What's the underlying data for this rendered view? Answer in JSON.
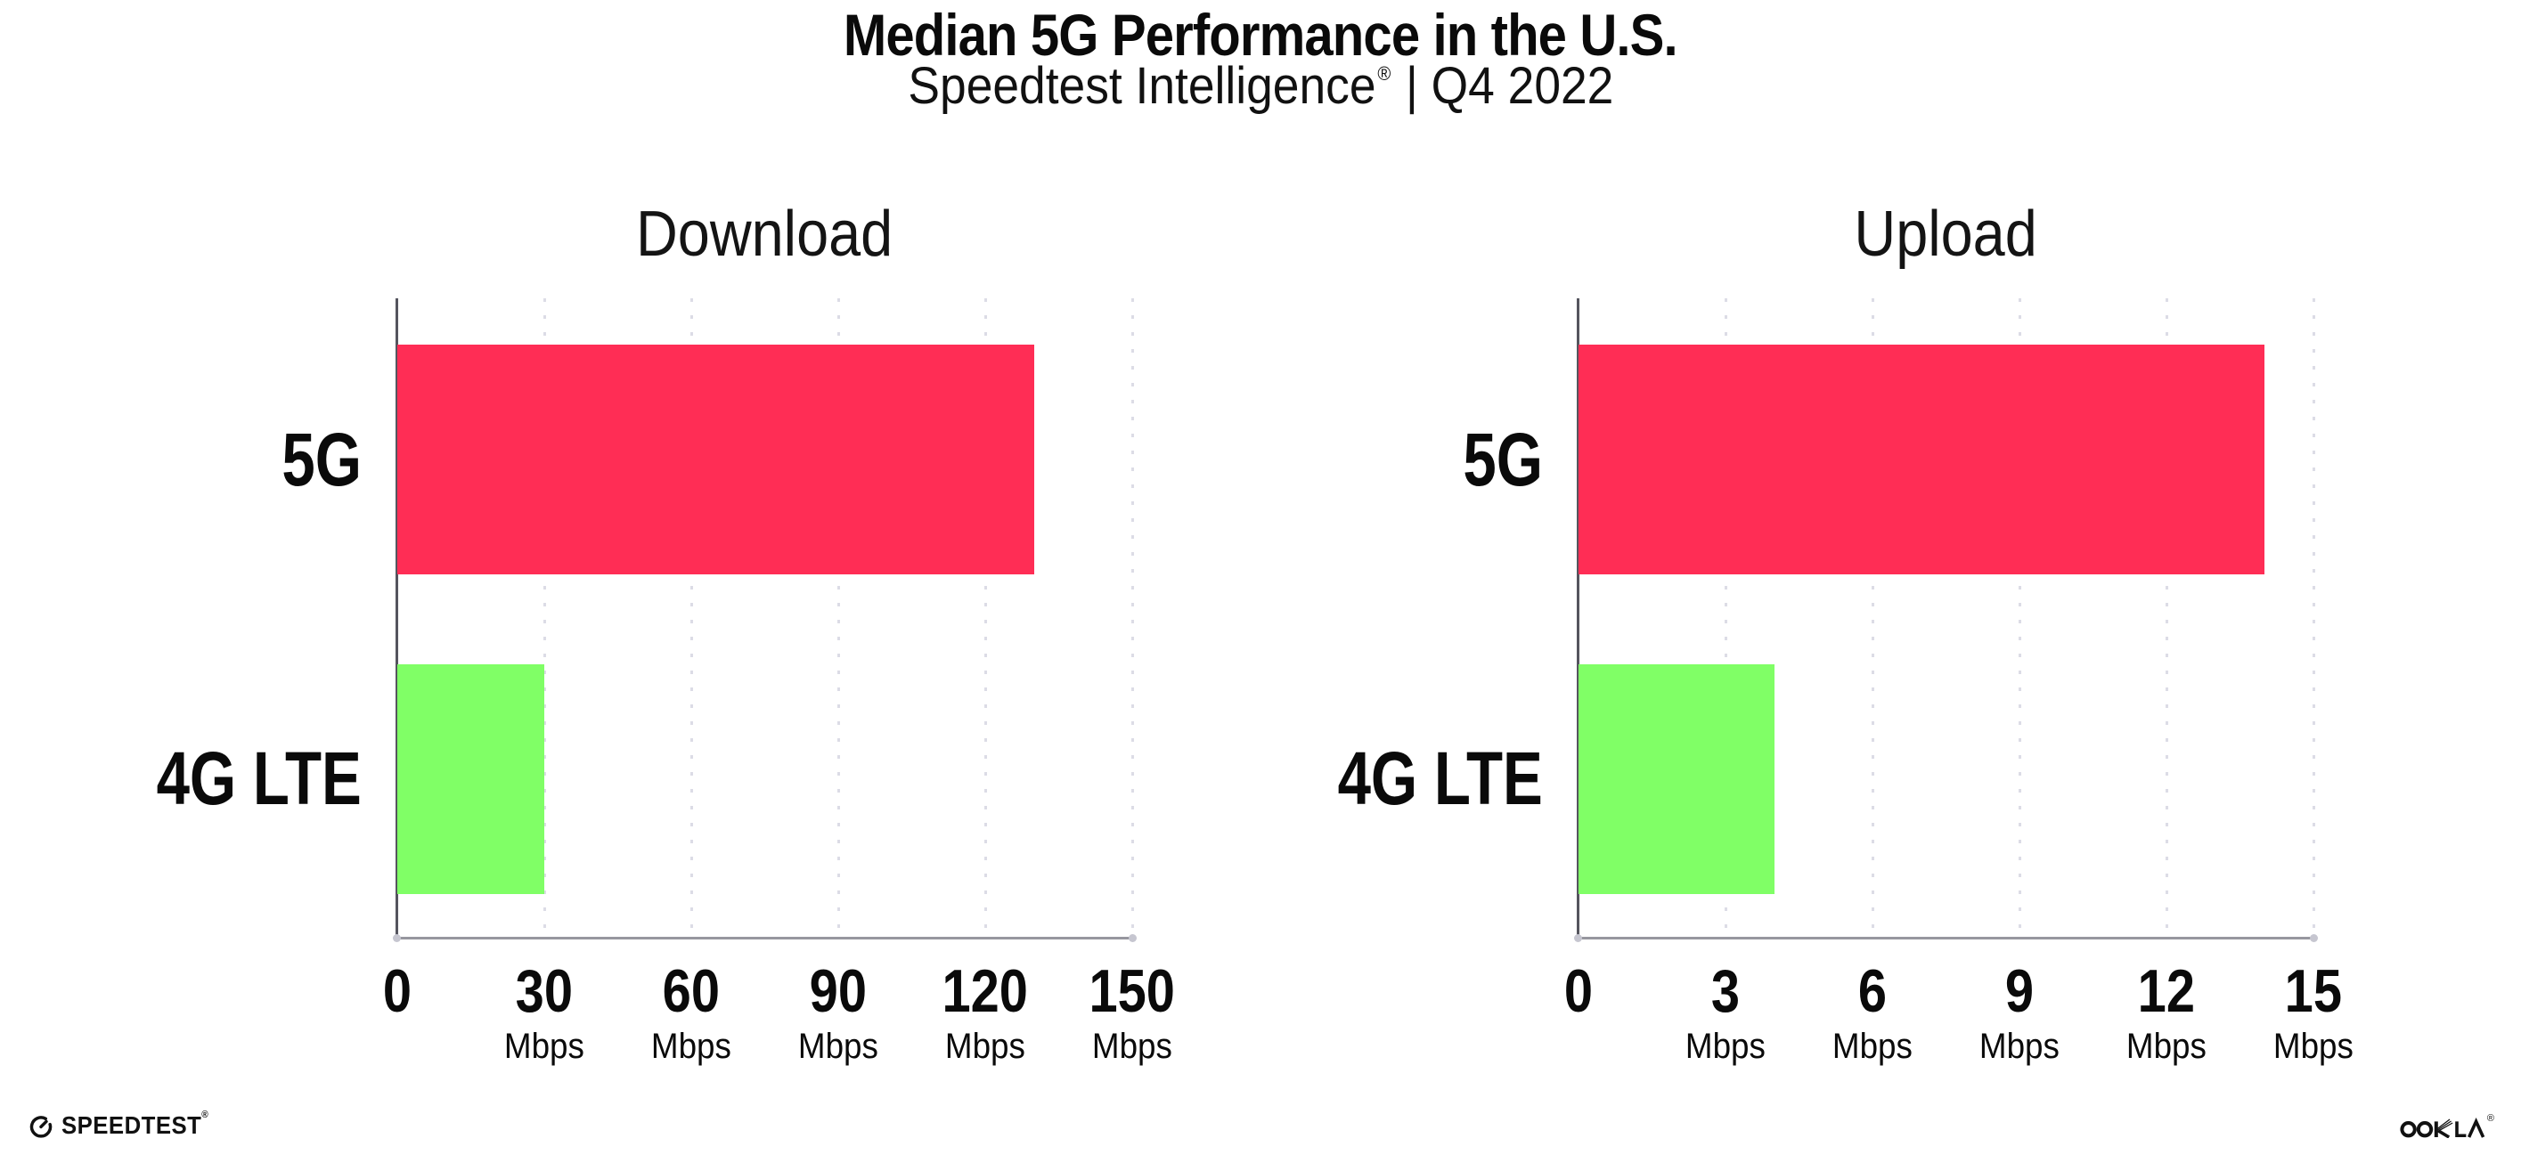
{
  "page": {
    "title": "Median 5G Performance in the U.S.",
    "subtitle": {
      "brand": "Speedtest Intelligence",
      "registered": "®",
      "period": "| Q4 2022"
    }
  },
  "colors": {
    "bar_5g": "#FF2D55",
    "bar_4g_lte": "#80FF66",
    "gridline": "#DCDCE6",
    "x_axis": "#97979F",
    "y_axis": "#55555E",
    "text": "#0A0A0A"
  },
  "chart_data": [
    {
      "type": "bar",
      "orientation": "horizontal",
      "title": "Download",
      "categories": [
        "5G",
        "4G LTE"
      ],
      "values": [
        130,
        30
      ],
      "unit": "Mbps",
      "xlim": [
        0,
        150
      ],
      "xticks": [
        0,
        30,
        60,
        90,
        120,
        150
      ],
      "bar_colors": [
        "#FF2D55",
        "#80FF66"
      ],
      "grid": "dotted-vertical",
      "legend": "none",
      "value_labels": false
    },
    {
      "type": "bar",
      "orientation": "horizontal",
      "title": "Upload",
      "categories": [
        "5G",
        "4G LTE"
      ],
      "values": [
        14,
        4
      ],
      "unit": "Mbps",
      "xlim": [
        0,
        15
      ],
      "xticks": [
        0,
        3,
        6,
        9,
        12,
        15
      ],
      "bar_colors": [
        "#FF2D55",
        "#80FF66"
      ],
      "grid": "dotted-vertical",
      "legend": "none",
      "value_labels": false
    }
  ],
  "footer": {
    "speedtest_wordmark": "SPEEDTEST",
    "speedtest_registered": "®",
    "ookla_wordmark": "OOKLA",
    "ookla_registered": "®"
  }
}
